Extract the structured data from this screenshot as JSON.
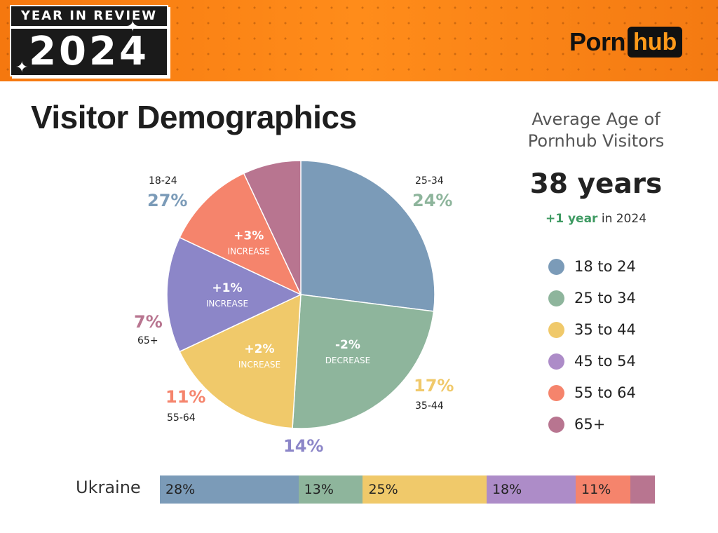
{
  "header": {
    "badge_top": "YEAR IN REVIEW",
    "badge_year": "2024",
    "logo_left": "Porn",
    "logo_right": "hub",
    "colors": {
      "banner": "#f5780f",
      "logo_hub": "#ff9a1a"
    }
  },
  "title": "Visitor Demographics",
  "average_age": {
    "title_line1": "Average Age of",
    "title_line2": "Pornhub Visitors",
    "value": "38 years",
    "change_value": "+1 year",
    "change_suffix": "in 2024",
    "change_color": "#3e9a62"
  },
  "legend": [
    {
      "label": "18 to 24",
      "color": "#7b9bb8"
    },
    {
      "label": "25 to 34",
      "color": "#8eb59c"
    },
    {
      "label": "35 to 44",
      "color": "#f0c96a"
    },
    {
      "label": "45 to 54",
      "color": "#ad8cc8"
    },
    {
      "label": "55 to 64",
      "color": "#f5846c"
    },
    {
      "label": "65+",
      "color": "#b87590"
    }
  ],
  "chart_data": [
    {
      "type": "pie",
      "title": "",
      "categories": [
        "18-24",
        "25-34",
        "35-44",
        "45-54",
        "55-64",
        "65+"
      ],
      "values": [
        27,
        24,
        17,
        14,
        11,
        7
      ],
      "value_labels": [
        "27%",
        "24%",
        "17%",
        "14%",
        "11%",
        "7%"
      ],
      "colors": [
        "#7b9bb8",
        "#8eb59c",
        "#f0c96a",
        "#8c86c8",
        "#f5846c",
        "#b87590"
      ],
      "annotations": [
        {
          "category": "25-34",
          "change": "-2%",
          "text": "DECREASE"
        },
        {
          "category": "35-44",
          "change": "+2%",
          "text": "INCREASE"
        },
        {
          "category": "45-54",
          "change": "+1%",
          "text": "INCREASE"
        },
        {
          "category": "55-64",
          "change": "+3%",
          "text": "INCREASE"
        }
      ]
    },
    {
      "type": "bar",
      "orientation": "horizontal-stacked",
      "categories": [
        "Ukraine"
      ],
      "series": [
        {
          "name": "18 to 24",
          "values": [
            28
          ],
          "label": "28%",
          "color": "#7b9bb8"
        },
        {
          "name": "25 to 34",
          "values": [
            13
          ],
          "label": "13%",
          "color": "#8eb59c"
        },
        {
          "name": "35 to 44",
          "values": [
            25
          ],
          "label": "25%",
          "color": "#f0c96a"
        },
        {
          "name": "45 to 54",
          "values": [
            18
          ],
          "label": "18%",
          "color": "#ad8cc8"
        },
        {
          "name": "55 to 64",
          "values": [
            11
          ],
          "label": "11%",
          "color": "#f5846c"
        },
        {
          "name": "65+",
          "values": [
            5
          ],
          "label": "",
          "color": "#b87590"
        }
      ]
    }
  ]
}
